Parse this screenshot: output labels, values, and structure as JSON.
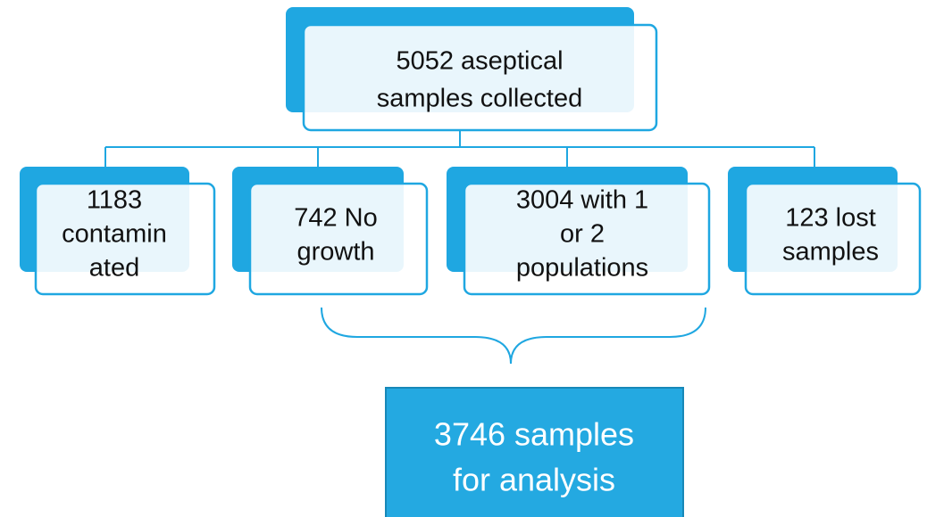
{
  "nodes": [
    {
      "lines": [
        "5052 aseptical",
        "samples collected"
      ]
    },
    {
      "lines": [
        "1183",
        "contamin",
        "ated"
      ]
    },
    {
      "lines": [
        "742 No",
        "growth"
      ]
    },
    {
      "lines": [
        "3004 with 1",
        "or 2",
        "populations"
      ]
    },
    {
      "lines": [
        "123 lost",
        "samples"
      ]
    },
    {
      "lines": [
        "3746 samples",
        "for analysis"
      ]
    }
  ]
}
